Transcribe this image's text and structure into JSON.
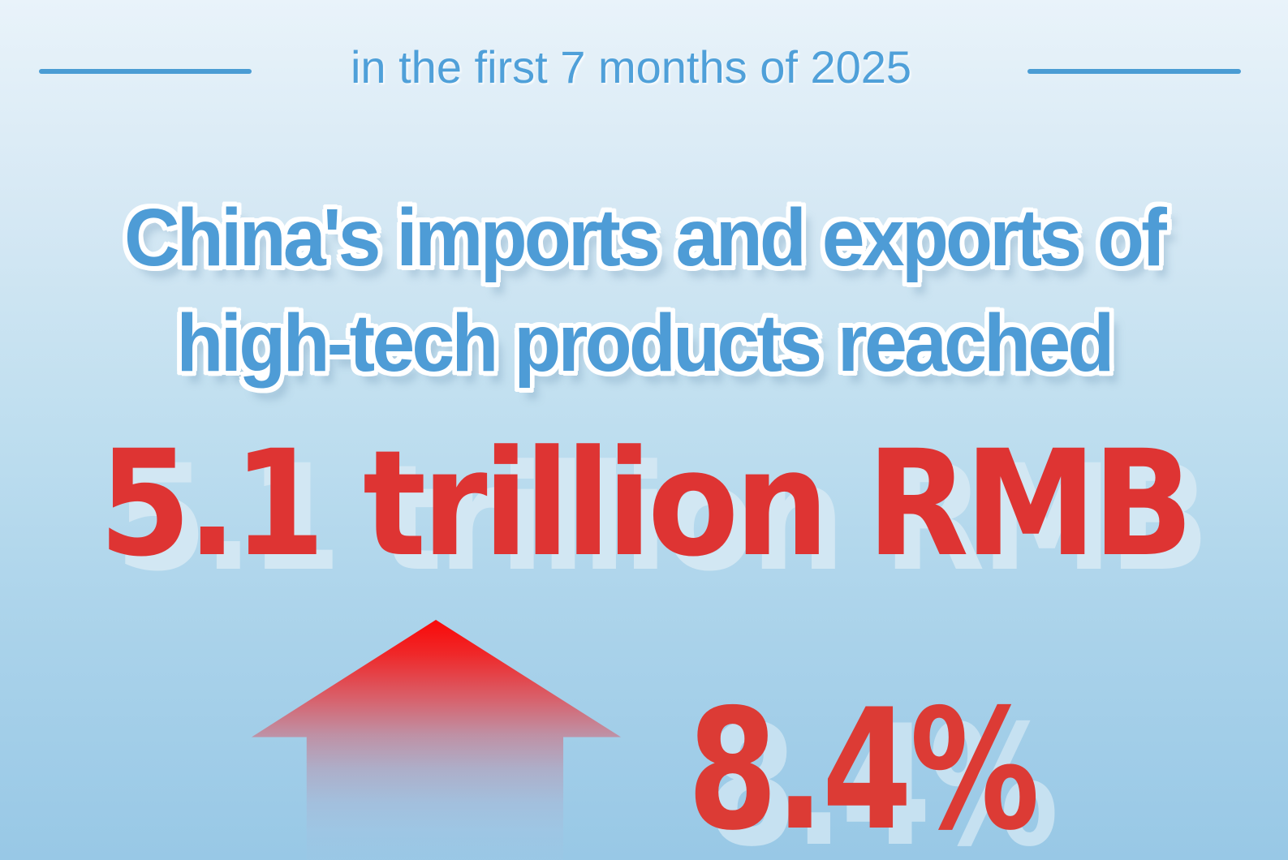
{
  "header": {
    "period_label": "in the first 7 months of 2025",
    "label_color": "#4fa0d9",
    "rule_color": "#4a9cd4"
  },
  "headline": {
    "line1": "China's imports and exports of",
    "line2": "high-tech products reached",
    "text_color": "#4e9cd6",
    "outline_color": "#ffffff"
  },
  "stats": {
    "value": "5.1 trillion RMB",
    "value_color": "#de3433",
    "growth": "8.4%",
    "growth_color": "#dc3b35",
    "shadow_color": "#cde5f3"
  },
  "arrow": {
    "direction": "up",
    "tip_color": "#f90909"
  },
  "background": {
    "top": "#e9f3fa",
    "middle": "#bedeef",
    "bottom": "#98c8e6"
  }
}
